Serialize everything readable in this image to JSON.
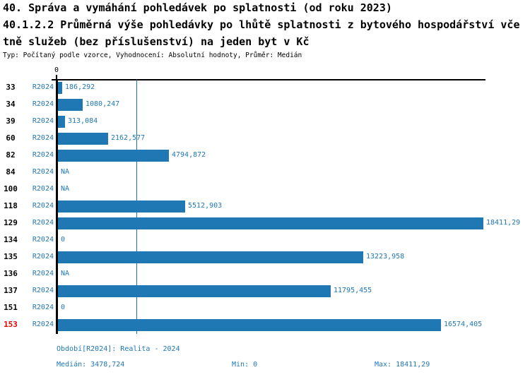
{
  "header": {
    "line1": "40. Správa a vymáhání pohledávek po splatnosti (od roku 2023)",
    "line2": "40.1.2.2 Průměrná výše pohledávky po lhůtě splatnosti z bytového hospodářství vče",
    "line3": "tně služeb (bez příslušenství) na jeden byt v Kč",
    "meta": "Typ: Počítaný podle vzorce, Vyhodnocení: Absolutní hodnoty, Průměr: Medián"
  },
  "chart_data": {
    "type": "bar",
    "orientation": "horizontal",
    "unit": "Kč",
    "axis": {
      "zero_label": "0",
      "xlim": [
        0,
        18411.29
      ],
      "median_line_value": 3478.724
    },
    "categories": [
      "33",
      "34",
      "39",
      "60",
      "82",
      "84",
      "100",
      "118",
      "129",
      "134",
      "135",
      "136",
      "137",
      "151",
      "153"
    ],
    "series": [
      {
        "name": "R2024",
        "values": [
          186.292,
          1080.247,
          313.084,
          2162.577,
          4794.872,
          null,
          null,
          5512.903,
          18411.29,
          0,
          13223.958,
          null,
          11795.455,
          0,
          16574.405
        ]
      }
    ],
    "value_labels": [
      "186,292",
      "1080,247",
      "313,084",
      "2162,577",
      "4794,872",
      "NA",
      "NA",
      "5512,903",
      "18411,29",
      "0",
      "13223,958",
      "NA",
      "11795,455",
      "0",
      "16574,405"
    ],
    "period_label": "R2024",
    "highlighted_category": "153",
    "legend_position": "none",
    "grid": "median-line-only"
  },
  "footer": {
    "period": "Období[R2024]: Realita - 2024",
    "median": "Medián: 3478,724",
    "min": "Min: 0",
    "max": "Max: 18411,29"
  },
  "colors": {
    "bar": "#1f77b4",
    "text_blue": "#1f77b4",
    "highlight_red": "#e60000",
    "axis_black": "#000000"
  }
}
